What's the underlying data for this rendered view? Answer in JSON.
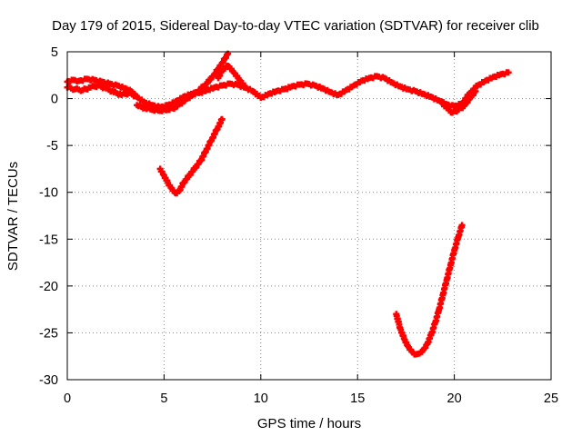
{
  "chart_data": {
    "type": "scatter",
    "title": "Day 179 of 2015, Sidereal Day-to-day VTEC variation (SDTVAR) for receiver clib",
    "xlabel": "GPS time / hours",
    "ylabel": "SDTVAR / TECUs",
    "xlim": [
      0,
      25
    ],
    "ylim": [
      -30,
      5
    ],
    "xticks": [
      "0",
      "5",
      "10",
      "15",
      "20",
      "25"
    ],
    "yticks": [
      "5",
      "0",
      "-5",
      "-10",
      "-15",
      "-20",
      "-25",
      "-30"
    ],
    "grid": true,
    "legend": "none",
    "marker": "plus",
    "color": "#ff0000",
    "series": [
      {
        "x": [
          0.0,
          0.3,
          0.6,
          1.0,
          1.4,
          1.8,
          2.2,
          2.6,
          3.0,
          3.3,
          3.6,
          4.0,
          4.4,
          4.8,
          5.2,
          5.6,
          6.0,
          6.4,
          6.8,
          7.2,
          7.6,
          8.0,
          8.4,
          8.8,
          9.2,
          9.6,
          10.0,
          10.4,
          10.8,
          11.2,
          11.6,
          12.0,
          12.4,
          12.8,
          13.2,
          13.6,
          14.0,
          14.4,
          14.8,
          15.2,
          15.6,
          16.0,
          16.4,
          16.8,
          17.2,
          17.6,
          18.0,
          18.4,
          18.8,
          19.2,
          19.6,
          20.0,
          20.4,
          20.8,
          21.2,
          21.6,
          22.0,
          22.4,
          22.8
        ],
        "y": [
          1.8,
          2.0,
          1.9,
          2.1,
          2.0,
          1.8,
          1.6,
          1.4,
          1.1,
          0.8,
          0.2,
          -0.4,
          -0.7,
          -0.9,
          -0.7,
          -0.3,
          0.2,
          0.5,
          0.6,
          0.9,
          1.2,
          1.4,
          1.6,
          1.5,
          1.2,
          0.8,
          0.1,
          0.5,
          0.8,
          1.0,
          1.3,
          1.5,
          1.6,
          1.4,
          1.1,
          0.7,
          0.4,
          0.9,
          1.4,
          1.9,
          2.2,
          2.4,
          2.2,
          1.7,
          1.3,
          1.0,
          0.8,
          0.5,
          0.2,
          -0.2,
          -0.6,
          -0.8,
          -0.5,
          0.6,
          1.4,
          1.9,
          2.3,
          2.6,
          2.8
        ]
      },
      {
        "x": [
          0.0,
          0.4,
          0.8,
          1.2,
          1.6,
          2.0,
          2.4,
          2.8,
          3.2,
          3.6
        ],
        "y": [
          1.2,
          1.0,
          0.9,
          1.2,
          1.4,
          1.1,
          0.7,
          0.4,
          0.6,
          0.2
        ]
      },
      {
        "x": [
          3.6,
          4.0,
          4.4,
          4.8,
          5.2,
          5.6,
          6.0,
          6.4,
          6.8,
          7.2,
          7.6,
          8.0,
          8.3
        ],
        "y": [
          -0.7,
          -1.0,
          -1.2,
          -1.3,
          -1.2,
          -0.9,
          -0.3,
          0.3,
          0.9,
          1.6,
          2.6,
          3.8,
          4.8
        ]
      },
      {
        "x": [
          7.8,
          8.0,
          8.3,
          8.6,
          8.9,
          9.2
        ],
        "y": [
          2.2,
          3.0,
          3.5,
          2.8,
          2.0,
          1.2
        ]
      },
      {
        "x": [
          4.8,
          5.0,
          5.2,
          5.4,
          5.6,
          5.8,
          6.0,
          6.3,
          6.6,
          6.9,
          7.2,
          7.5,
          7.8,
          8.0
        ],
        "y": [
          -7.5,
          -8.2,
          -9.0,
          -9.6,
          -10.1,
          -9.8,
          -9.0,
          -8.2,
          -7.4,
          -6.6,
          -5.4,
          -4.2,
          -3.0,
          -2.2
        ]
      },
      {
        "x": [
          17.0,
          17.2,
          17.4,
          17.6,
          17.8,
          18.0,
          18.2,
          18.4,
          18.6,
          18.8,
          19.0,
          19.2,
          19.4,
          19.6,
          19.8,
          20.0,
          20.2,
          20.4
        ],
        "y": [
          -23.0,
          -24.5,
          -25.6,
          -26.4,
          -27.0,
          -27.3,
          -27.2,
          -26.8,
          -26.2,
          -25.2,
          -24.0,
          -22.6,
          -21.0,
          -19.4,
          -17.8,
          -16.2,
          -14.8,
          -13.5
        ]
      },
      {
        "x": [
          19.3,
          19.6,
          19.9,
          20.2,
          20.5,
          20.8,
          21.1
        ],
        "y": [
          -0.3,
          -1.0,
          -1.5,
          -1.2,
          -0.8,
          0.0,
          0.8
        ]
      }
    ]
  }
}
